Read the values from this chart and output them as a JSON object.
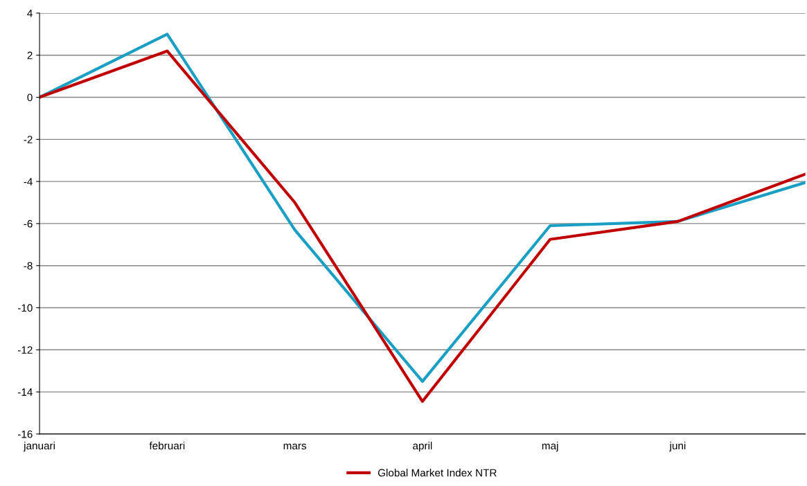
{
  "chart_data": {
    "type": "line",
    "categories": [
      "januari",
      "februari",
      "mars",
      "april",
      "maj",
      "juni",
      null
    ],
    "series": [
      {
        "color": "#1a9fc4",
        "values": [
          0,
          3.0,
          -6.3,
          -13.5,
          -6.1,
          -5.9,
          -4.05
        ]
      },
      {
        "name": "Global Market Index NTR",
        "color": "#c00000",
        "values": [
          0,
          2.2,
          -5.0,
          -14.45,
          -6.75,
          -5.9,
          -3.65
        ]
      }
    ],
    "ylim": [
      -16,
      4
    ],
    "yticks": [
      -16,
      -14,
      -12,
      -10,
      -8,
      -6,
      -4,
      -2,
      0,
      2,
      4
    ],
    "grid": "y",
    "legend": "bottom",
    "marker": "none",
    "line_style": "solid"
  }
}
